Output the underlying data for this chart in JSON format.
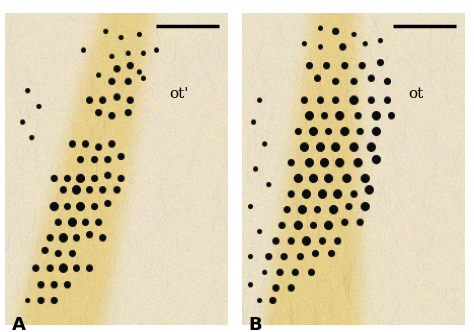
{
  "figure_width": 4.74,
  "figure_height": 3.32,
  "dpi": 100,
  "bg_color": "#ffffff",
  "panel_A_label": "A",
  "panel_B_label": "B",
  "label_A_text": "ot'",
  "label_B_text": "ot",
  "label_fontsize": 11,
  "panel_label_fontsize": 13,
  "scalebar_color": "#000000",
  "scalebar_thickness": 2.5,
  "outer_border_color": "#888888"
}
